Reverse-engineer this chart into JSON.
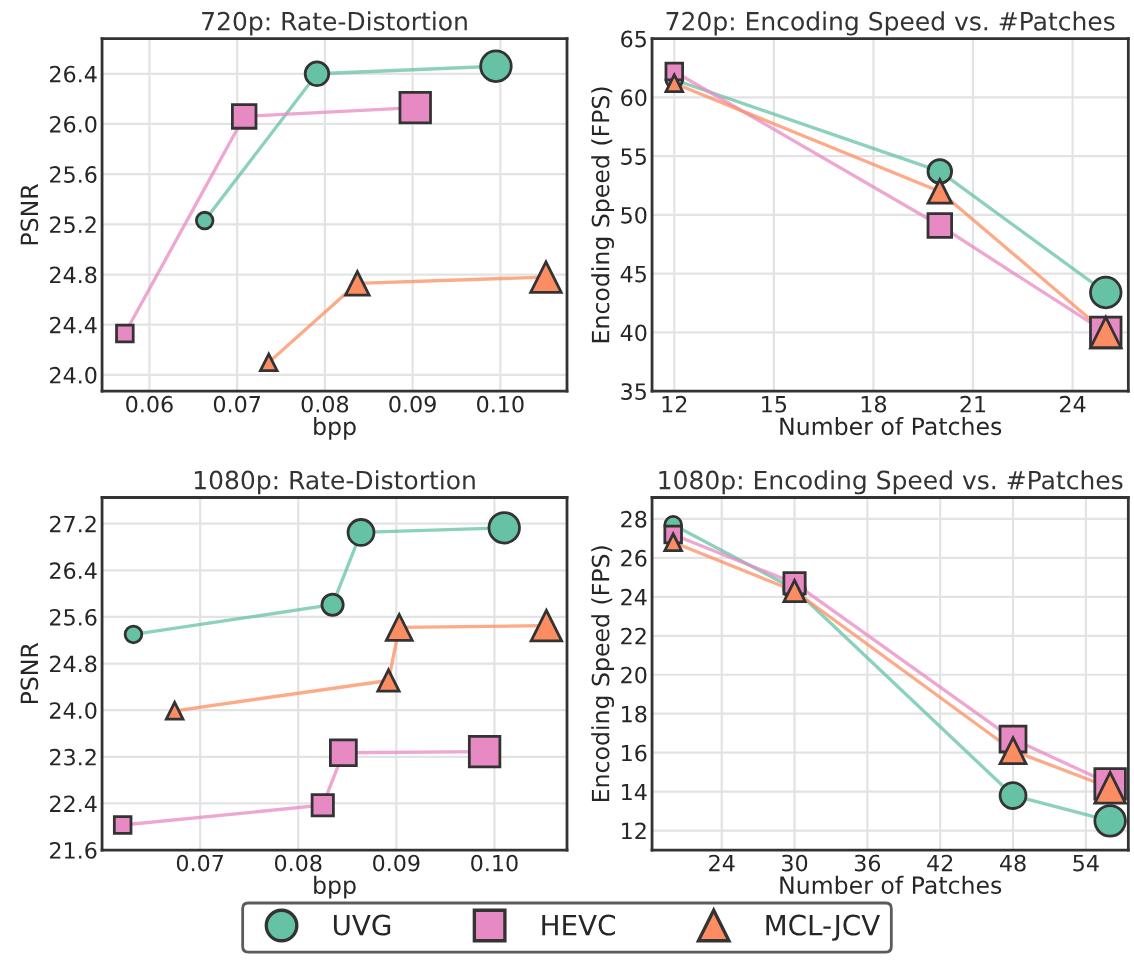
{
  "chart_data": [
    {
      "type": "line",
      "title": "720p: Rate-Distortion",
      "xlabel": "bpp",
      "ylabel": "PSNR",
      "xlim": [
        0.0546,
        0.1076
      ],
      "xticks": [
        {
          "value": 0.06,
          "label": "0.06"
        },
        {
          "value": 0.07,
          "label": "0.07"
        },
        {
          "value": 0.08,
          "label": "0.08"
        },
        {
          "value": 0.09,
          "label": "0.09"
        },
        {
          "value": 0.1,
          "label": "0.10"
        }
      ],
      "ylim": [
        23.87,
        26.68
      ],
      "yticks": [
        {
          "value": 24.0,
          "label": "24.0"
        },
        {
          "value": 24.4,
          "label": "24.4"
        },
        {
          "value": 24.8,
          "label": "24.8"
        },
        {
          "value": 25.2,
          "label": "25.2"
        },
        {
          "value": 25.6,
          "label": "25.6"
        },
        {
          "value": 26.0,
          "label": "26.0"
        },
        {
          "value": 26.4,
          "label": "26.4"
        }
      ],
      "grid": true,
      "legend": "bottom",
      "series": [
        {
          "name": "UVG",
          "color": "#66c2a5",
          "marker": "circle",
          "x": [
            0.0663,
            0.0791,
            0.0995
          ],
          "values": [
            25.23,
            26.4,
            26.46
          ]
        },
        {
          "name": "HEVC",
          "color": "#e78ac3",
          "marker": "square",
          "x": [
            0.0572,
            0.0708,
            0.0903
          ],
          "values": [
            24.33,
            26.06,
            26.13
          ]
        },
        {
          "name": "MCL-JCV",
          "color": "#fc8d62",
          "marker": "triangle",
          "x": [
            0.0736,
            0.0837,
            0.1052
          ],
          "values": [
            24.1,
            24.73,
            24.78
          ]
        }
      ]
    },
    {
      "type": "line",
      "title": "720p: Encoding Speed vs. #Patches",
      "xlabel": "Number of Patches",
      "ylabel": "Encoding Speed (FPS)",
      "xlim": [
        11.33,
        25.68
      ],
      "xticks": [
        12,
        15,
        18,
        21,
        24
      ],
      "ylim": [
        35,
        65
      ],
      "yticks": [
        35,
        40,
        45,
        50,
        55,
        60,
        65
      ],
      "grid": true,
      "series": [
        {
          "color": "#66c2a5",
          "marker": "circle",
          "x": [
            12,
            20,
            25
          ],
          "values": [
            61.5,
            53.7,
            43.4
          ]
        },
        {
          "color": "#e78ac3",
          "marker": "square",
          "x": [
            12,
            20,
            25
          ],
          "values": [
            62.2,
            49.1,
            40.0
          ]
        },
        {
          "color": "#fc8d62",
          "marker": "triangle",
          "x": [
            12,
            20,
            25
          ],
          "values": [
            61.2,
            52.0,
            40.0
          ]
        }
      ]
    },
    {
      "type": "line",
      "title": "1080p: Rate-Distortion",
      "xlabel": "bpp",
      "ylabel": "PSNR",
      "xlim": [
        0.06,
        0.1074
      ],
      "xticks": [
        {
          "value": 0.07,
          "label": "0.07"
        },
        {
          "value": 0.08,
          "label": "0.08"
        },
        {
          "value": 0.09,
          "label": "0.09"
        },
        {
          "value": 0.1,
          "label": "0.10"
        }
      ],
      "ylim": [
        21.6,
        27.65
      ],
      "yticks": [
        {
          "value": 21.6,
          "label": "21.6"
        },
        {
          "value": 22.4,
          "label": "22.4"
        },
        {
          "value": 23.2,
          "label": "23.2"
        },
        {
          "value": 24.0,
          "label": "24.0"
        },
        {
          "value": 24.8,
          "label": "24.8"
        },
        {
          "value": 25.6,
          "label": "25.6"
        },
        {
          "value": 26.4,
          "label": "26.4"
        },
        {
          "value": 27.2,
          "label": "27.2"
        }
      ],
      "grid": true,
      "series": [
        {
          "color": "#66c2a5",
          "marker": "circle",
          "x": [
            0.0632,
            0.0835,
            0.0864,
            0.101
          ],
          "values": [
            25.3,
            25.81,
            27.05,
            27.13
          ]
        },
        {
          "color": "#e78ac3",
          "marker": "square",
          "x": [
            0.0621,
            0.0825,
            0.0846,
            0.099
          ],
          "values": [
            22.03,
            22.37,
            23.27,
            23.29
          ]
        },
        {
          "color": "#fc8d62",
          "marker": "triangle",
          "x": [
            0.0674,
            0.0892,
            0.0903,
            0.1053
          ],
          "values": [
            23.99,
            24.51,
            25.42,
            25.45
          ]
        }
      ]
    },
    {
      "type": "line",
      "title": "1080p: Encoding Speed vs. #Patches",
      "xlabel": "Number of Patches",
      "ylabel": "Encoding Speed (FPS)",
      "xlim": [
        18.26,
        57.5
      ],
      "xticks": [
        24,
        30,
        36,
        42,
        48,
        54
      ],
      "ylim": [
        11.0,
        29.1
      ],
      "yticks": [
        12,
        14,
        16,
        18,
        20,
        22,
        24,
        26,
        28
      ],
      "grid": true,
      "series": [
        {
          "color": "#66c2a5",
          "marker": "circle",
          "x": [
            20,
            30,
            48,
            56
          ],
          "values": [
            27.7,
            24.4,
            13.8,
            12.5
          ]
        },
        {
          "color": "#e78ac3",
          "marker": "square",
          "x": [
            20,
            30,
            48,
            56
          ],
          "values": [
            27.2,
            24.7,
            16.7,
            14.4
          ]
        },
        {
          "color": "#fc8d62",
          "marker": "triangle",
          "x": [
            20,
            30,
            48,
            56
          ],
          "values": [
            26.8,
            24.3,
            16.1,
            14.2
          ]
        }
      ]
    }
  ]
}
